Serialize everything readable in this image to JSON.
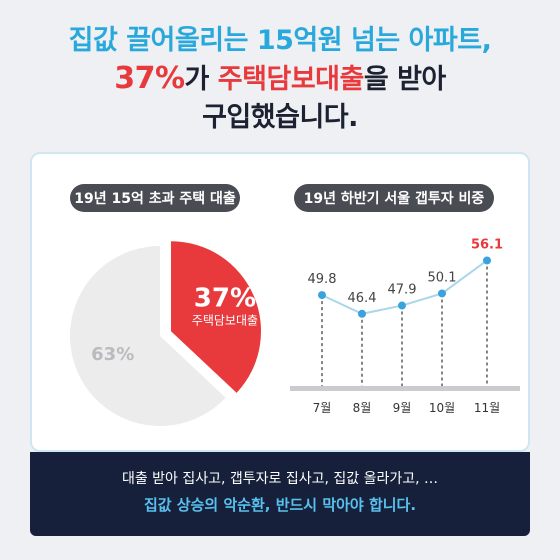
{
  "headline": {
    "line1": "집값 끌어올리는 15억원 넘는 아파트,",
    "line2_pct": "37%",
    "line2_a": "가 ",
    "line2_b": "주택담보대출",
    "line2_c": "을 받아",
    "line3": "구입했습니다."
  },
  "left_panel": {
    "title": "19년 15억 초과 주택 대출"
  },
  "right_panel": {
    "title": "19년 하반기 서울 갭투자 비중"
  },
  "chart_data": [
    {
      "type": "pie",
      "title": "19년 15억 초과 주택 대출",
      "slices": [
        {
          "label": "주택담보대출",
          "value": 37,
          "value_label": "37%",
          "color": "#e83a3c"
        },
        {
          "label": "",
          "value": 63,
          "value_label": "63%",
          "color": "#ececed"
        }
      ]
    },
    {
      "type": "line",
      "title": "19년 하반기 서울 갭투자 비중",
      "categories": [
        "7월",
        "8월",
        "9월",
        "10월",
        "11월"
      ],
      "series": [
        {
          "values": [
            49.8,
            46.4,
            47.9,
            50.1,
            56.1
          ],
          "value_labels": [
            "49.8",
            "46.4",
            "47.9",
            "50.1",
            "56.1"
          ],
          "color": "#a9d6ec",
          "marker_color": "#3aa2dc"
        }
      ],
      "highlight_color": "#e83a3c"
    }
  ],
  "footer": {
    "line1": "대출 받아 집사고, 갭투자로 집사고, 집값 올라가고, …",
    "line2": "집값 상승의 악순환, 반드시 막아야 합니다."
  }
}
